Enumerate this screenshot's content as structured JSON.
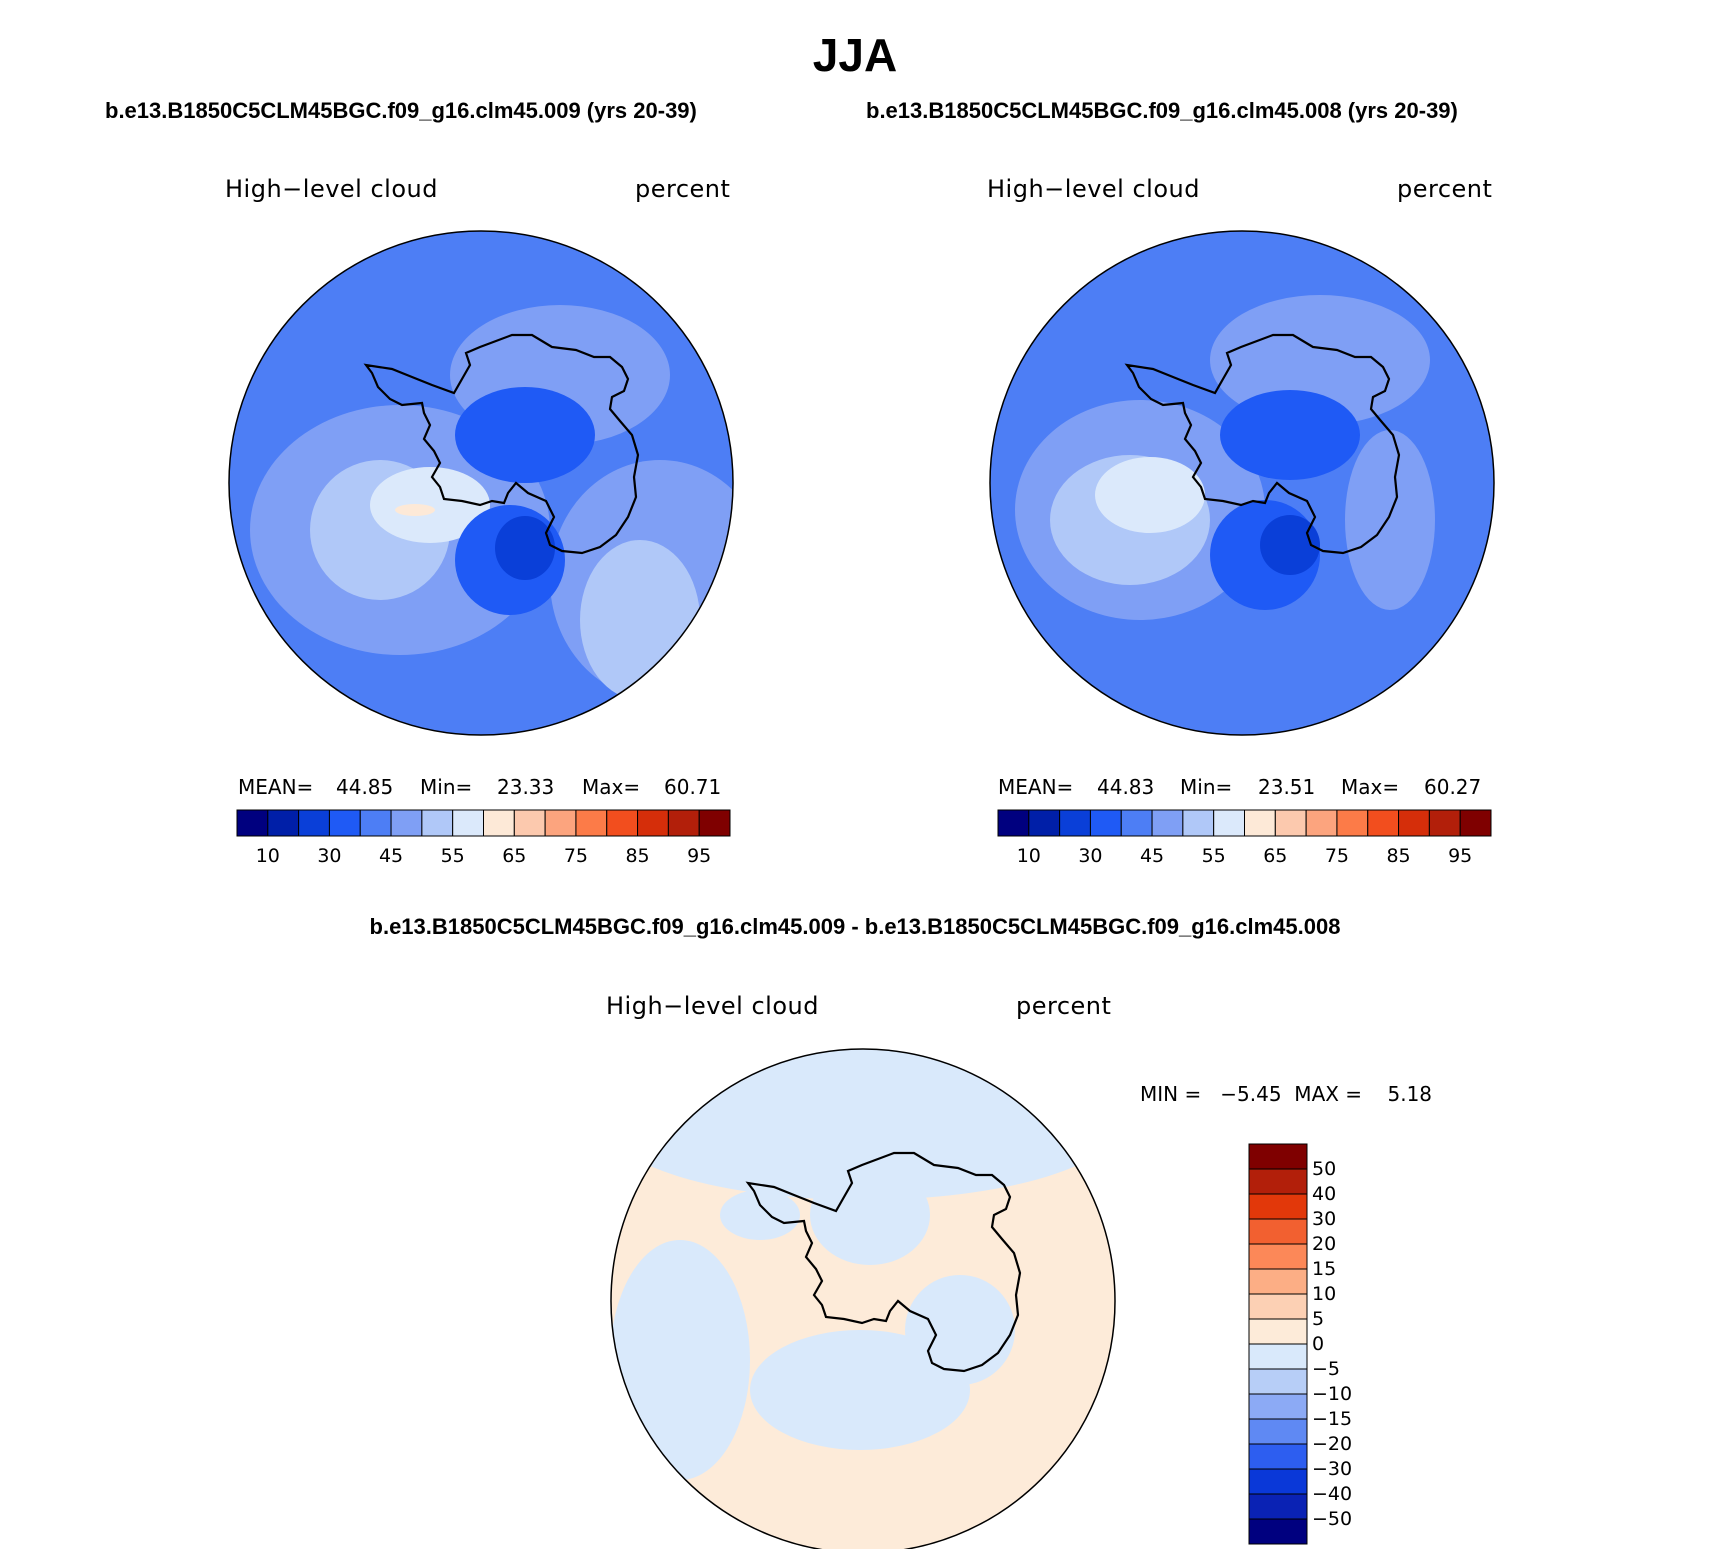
{
  "season": "JJA",
  "panels": [
    {
      "case_title": "b.e13.B1850C5CLM45BGC.f09_g16.clm45.009 (yrs 20-39)",
      "variable": "High−level cloud",
      "units": "percent",
      "stats": {
        "mean_label": "MEAN=",
        "mean": "44.85",
        "min_label": "Min=",
        "min": "23.33",
        "max_label": "Max=",
        "max": "60.71"
      }
    },
    {
      "case_title": "b.e13.B1850C5CLM45BGC.f09_g16.clm45.008 (yrs 20-39)",
      "variable": "High−level cloud",
      "units": "percent",
      "stats": {
        "mean_label": "MEAN=",
        "mean": "44.83",
        "min_label": "Min=",
        "min": "23.51",
        "max_label": "Max=",
        "max": "60.27"
      }
    }
  ],
  "diff_panel": {
    "case_title": "b.e13.B1850C5CLM45BGC.f09_g16.clm45.009 - b.e13.B1850C5CLM45BGC.f09_g16.clm45.008",
    "variable": "High−level cloud",
    "units": "percent",
    "stats": "MIN =   −5.45  MAX =    5.18"
  },
  "colorbar_main": {
    "colors": [
      "#00007f",
      "#001fa8",
      "#0a3fd8",
      "#1f5af5",
      "#4d7ef5",
      "#7f9ff5",
      "#b0c8f8",
      "#dbe9fb",
      "#fde9d7",
      "#fcc9ae",
      "#fca47e",
      "#fc7b48",
      "#f24e1e",
      "#d52e0a",
      "#b21f0a",
      "#7f0000"
    ],
    "ticks": [
      "10",
      "30",
      "45",
      "55",
      "65",
      "75",
      "85",
      "95"
    ]
  },
  "colorbar_diff": {
    "colors": [
      "#7f0000",
      "#b21f0a",
      "#e2380a",
      "#f26030",
      "#fc8858",
      "#fcae85",
      "#fcd0b4",
      "#fdebd9",
      "#d9e9fb",
      "#b7cef7",
      "#8caaf5",
      "#5f89f3",
      "#2d5ef0",
      "#0a38d8",
      "#0a22b4",
      "#00007f"
    ],
    "ticks": [
      "50",
      "40",
      "30",
      "20",
      "15",
      "10",
      "5",
      "0",
      "−5",
      "−10",
      "−15",
      "−20",
      "−30",
      "−40",
      "−50"
    ]
  }
}
